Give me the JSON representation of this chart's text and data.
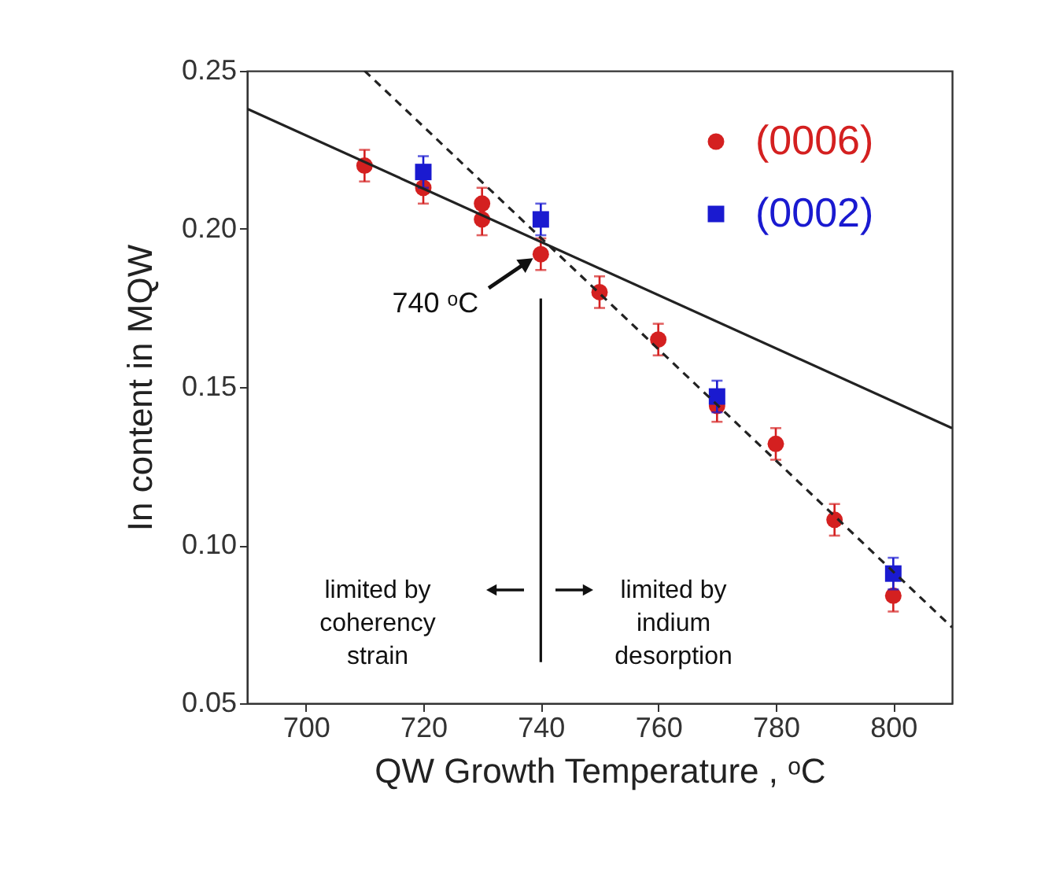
{
  "chart_data": {
    "type": "scatter",
    "xlabel": "QW Growth Temperature , ᵒC",
    "ylabel": "In content in MQW",
    "xlim": [
      690,
      810
    ],
    "xticks": [
      700,
      720,
      740,
      760,
      780,
      800
    ],
    "ylim": [
      0.05,
      0.25
    ],
    "yticks": [
      0.05,
      {
        "value": 0.1,
        "label": "0.10"
      },
      0.15,
      {
        "value": 0.2,
        "label": "0.20"
      },
      0.25
    ],
    "grid": false,
    "legend": "top right",
    "series": [
      {
        "name": "(0006)",
        "type": "scatter",
        "marker": "circle",
        "color": "#d42020",
        "x": [
          710,
          720,
          730,
          730,
          740,
          750,
          760,
          770,
          780,
          790,
          800
        ],
        "values": [
          0.22,
          0.213,
          0.208,
          0.203,
          0.192,
          0.18,
          0.165,
          0.144,
          0.132,
          0.108,
          0.084
        ],
        "errors": [
          0.005,
          0.005,
          0.005,
          0.005,
          0.005,
          0.005,
          0.005,
          0.005,
          0.005,
          0.005,
          0.005
        ]
      },
      {
        "name": "(0002)",
        "type": "scatter",
        "marker": "square",
        "color": "#1a1ad0",
        "x": [
          720,
          740,
          770,
          800
        ],
        "values": [
          0.218,
          0.203,
          0.147,
          0.091
        ],
        "errors": [
          0.005,
          0.005,
          0.005,
          0.005
        ]
      },
      {
        "type": "line",
        "line_style": "solid",
        "color": "#222222",
        "x": [
          690,
          810
        ],
        "values": [
          0.238,
          0.137
        ]
      },
      {
        "type": "line",
        "line_style": "dashed",
        "color": "#222222",
        "x": [
          710,
          810
        ],
        "values": [
          0.25,
          0.074
        ]
      },
      {
        "type": "line",
        "line_style": "solid",
        "color": "#111111",
        "x": [
          740,
          740
        ],
        "values": [
          0.178,
          0.063
        ]
      }
    ],
    "annotations": [
      {
        "text": "740 ᵒC",
        "x": 740,
        "y": 0.193
      },
      "limited by\ncoherency\nstrain",
      "limited by\nindium\ndesorption"
    ]
  }
}
